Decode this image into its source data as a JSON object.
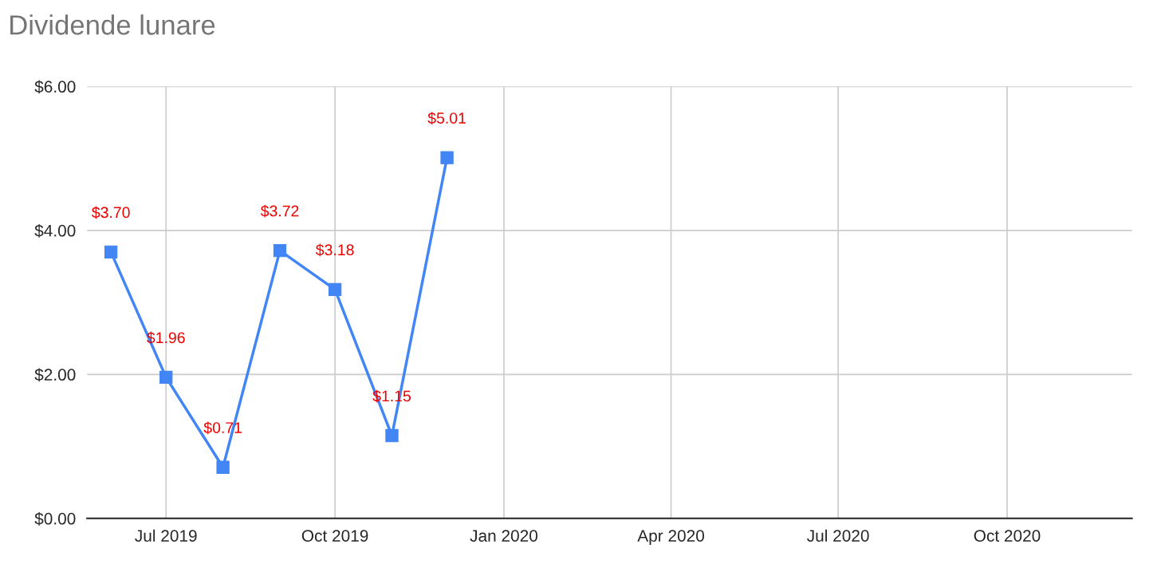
{
  "chart_data": {
    "type": "line",
    "title": "Dividende lunare",
    "x": [
      "2019-06",
      "2019-07",
      "2019-08",
      "2019-09",
      "2019-10",
      "2019-11",
      "2019-12"
    ],
    "series": [
      {
        "color": "#4285f4",
        "values": [
          3.7,
          1.96,
          0.71,
          3.72,
          3.18,
          1.15,
          5.01
        ],
        "value_labels": [
          "$3.70",
          "$1.96",
          "$0.71",
          "$3.72",
          "$3.18",
          "$1.15",
          "$5.01"
        ]
      }
    ],
    "xlim": [
      "2019-05-19",
      "2020-12-08"
    ],
    "xticks": [
      {
        "value": "2019-07-01",
        "label": "Jul 2019"
      },
      {
        "value": "2019-10-01",
        "label": "Oct 2019"
      },
      {
        "value": "2020-01-01",
        "label": "Jan 2020"
      },
      {
        "value": "2020-04-01",
        "label": "Apr 2020"
      },
      {
        "value": "2020-07-01",
        "label": "Jul 2020"
      },
      {
        "value": "2020-10-01",
        "label": "Oct 2020"
      }
    ],
    "ylim": [
      0,
      6
    ],
    "yticks": [
      {
        "value": 0,
        "label": "$0.00"
      },
      {
        "value": 2,
        "label": "$2.00"
      },
      {
        "value": 4,
        "label": "$4.00"
      },
      {
        "value": 6,
        "label": "$6.00"
      }
    ],
    "grid": true,
    "marker": "square",
    "line_style": "solid",
    "legend": false
  }
}
